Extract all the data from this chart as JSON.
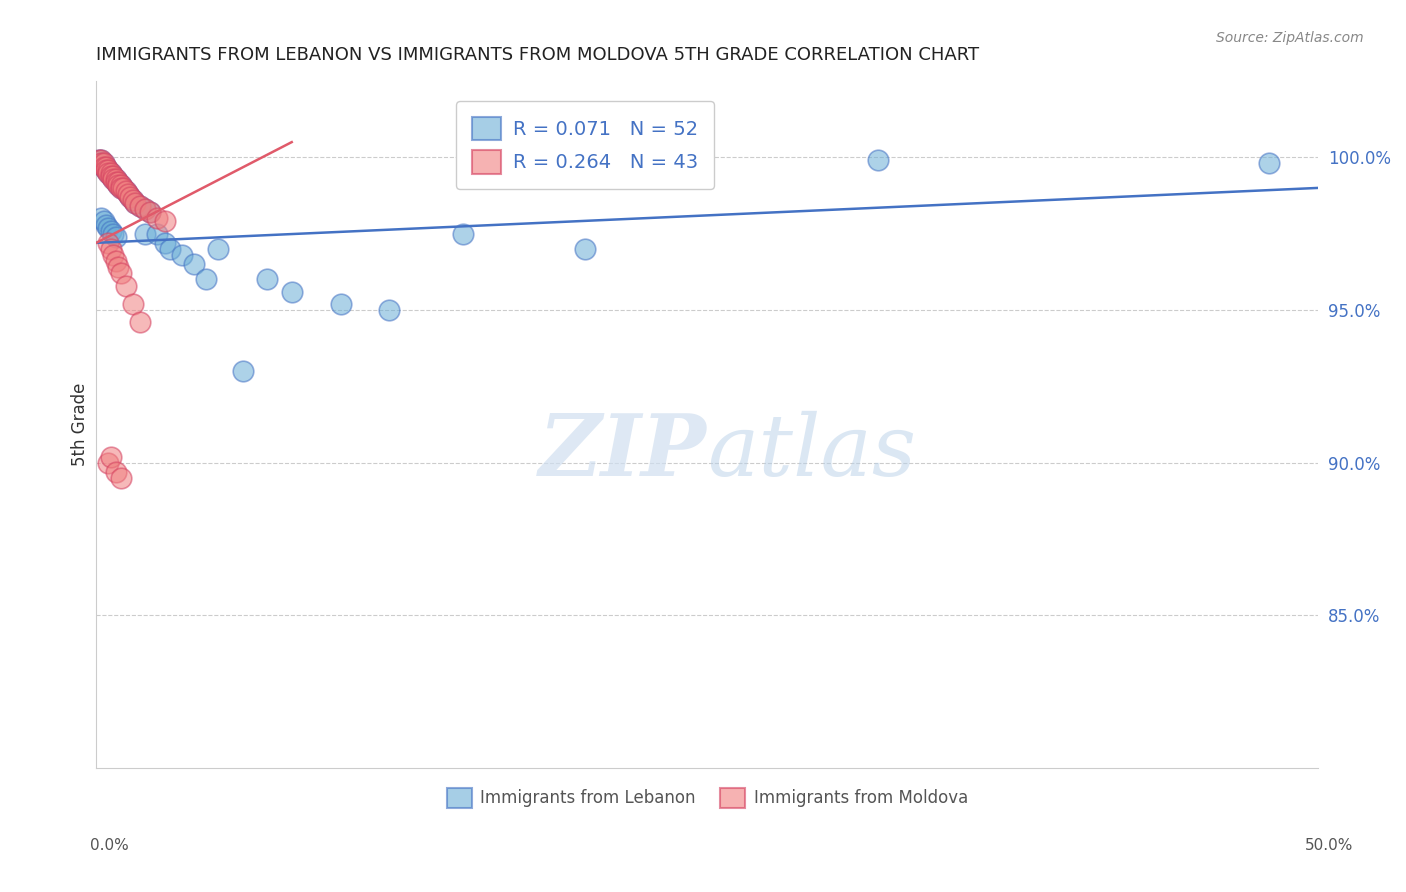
{
  "title": "IMMIGRANTS FROM LEBANON VS IMMIGRANTS FROM MOLDOVA 5TH GRADE CORRELATION CHART",
  "source": "Source: ZipAtlas.com",
  "ylabel": "5th Grade",
  "ytick_labels": [
    "100.0%",
    "95.0%",
    "90.0%",
    "85.0%"
  ],
  "ytick_values": [
    1.0,
    0.95,
    0.9,
    0.85
  ],
  "xmin": 0.0,
  "xmax": 0.5,
  "ymin": 0.8,
  "ymax": 1.025,
  "legend_r_lebanon": "R = 0.071",
  "legend_n_lebanon": "N = 52",
  "legend_r_moldova": "R = 0.264",
  "legend_n_moldova": "N = 43",
  "color_lebanon": "#6baed6",
  "color_moldova": "#f08080",
  "edge_lebanon": "#4472c4",
  "edge_moldova": "#d44060",
  "trendline_color_lebanon": "#4472c4",
  "trendline_color_moldova": "#e05a6a",
  "watermark_zip": "ZIP",
  "watermark_atlas": "atlas",
  "lebanon_x": [
    0.001,
    0.002,
    0.002,
    0.003,
    0.003,
    0.004,
    0.004,
    0.005,
    0.005,
    0.006,
    0.006,
    0.007,
    0.007,
    0.008,
    0.008,
    0.009,
    0.009,
    0.01,
    0.01,
    0.011,
    0.012,
    0.013,
    0.014,
    0.015,
    0.016,
    0.018,
    0.02,
    0.02,
    0.022,
    0.025,
    0.028,
    0.03,
    0.035,
    0.04,
    0.045,
    0.05,
    0.06,
    0.07,
    0.08,
    0.1,
    0.12,
    0.15,
    0.2,
    0.32,
    0.48,
    0.002,
    0.003,
    0.004,
    0.005,
    0.006,
    0.007,
    0.008
  ],
  "lebanon_y": [
    0.999,
    0.999,
    0.998,
    0.998,
    0.997,
    0.997,
    0.996,
    0.996,
    0.995,
    0.995,
    0.994,
    0.994,
    0.993,
    0.993,
    0.992,
    0.992,
    0.991,
    0.991,
    0.99,
    0.99,
    0.989,
    0.988,
    0.987,
    0.986,
    0.985,
    0.984,
    0.983,
    0.975,
    0.982,
    0.975,
    0.972,
    0.97,
    0.968,
    0.965,
    0.96,
    0.97,
    0.93,
    0.96,
    0.956,
    0.952,
    0.95,
    0.975,
    0.97,
    0.999,
    0.998,
    0.98,
    0.979,
    0.978,
    0.977,
    0.976,
    0.975,
    0.974
  ],
  "moldova_x": [
    0.001,
    0.002,
    0.002,
    0.003,
    0.003,
    0.004,
    0.004,
    0.005,
    0.005,
    0.006,
    0.006,
    0.007,
    0.007,
    0.008,
    0.008,
    0.009,
    0.009,
    0.01,
    0.01,
    0.011,
    0.012,
    0.013,
    0.014,
    0.015,
    0.016,
    0.018,
    0.02,
    0.022,
    0.025,
    0.028,
    0.005,
    0.006,
    0.007,
    0.008,
    0.009,
    0.01,
    0.012,
    0.015,
    0.018,
    0.005,
    0.006,
    0.008,
    0.01
  ],
  "moldova_y": [
    0.999,
    0.999,
    0.998,
    0.998,
    0.997,
    0.997,
    0.996,
    0.996,
    0.995,
    0.995,
    0.994,
    0.994,
    0.993,
    0.993,
    0.992,
    0.992,
    0.991,
    0.991,
    0.99,
    0.99,
    0.989,
    0.988,
    0.987,
    0.986,
    0.985,
    0.984,
    0.983,
    0.982,
    0.98,
    0.979,
    0.972,
    0.97,
    0.968,
    0.966,
    0.964,
    0.962,
    0.958,
    0.952,
    0.946,
    0.9,
    0.902,
    0.897,
    0.895
  ],
  "leb_trend_x0": 0.0,
  "leb_trend_y0": 0.972,
  "leb_trend_x1": 0.5,
  "leb_trend_y1": 0.99,
  "mol_trend_x0": 0.0,
  "mol_trend_y0": 0.972,
  "mol_trend_x1": 0.08,
  "mol_trend_y1": 1.005
}
